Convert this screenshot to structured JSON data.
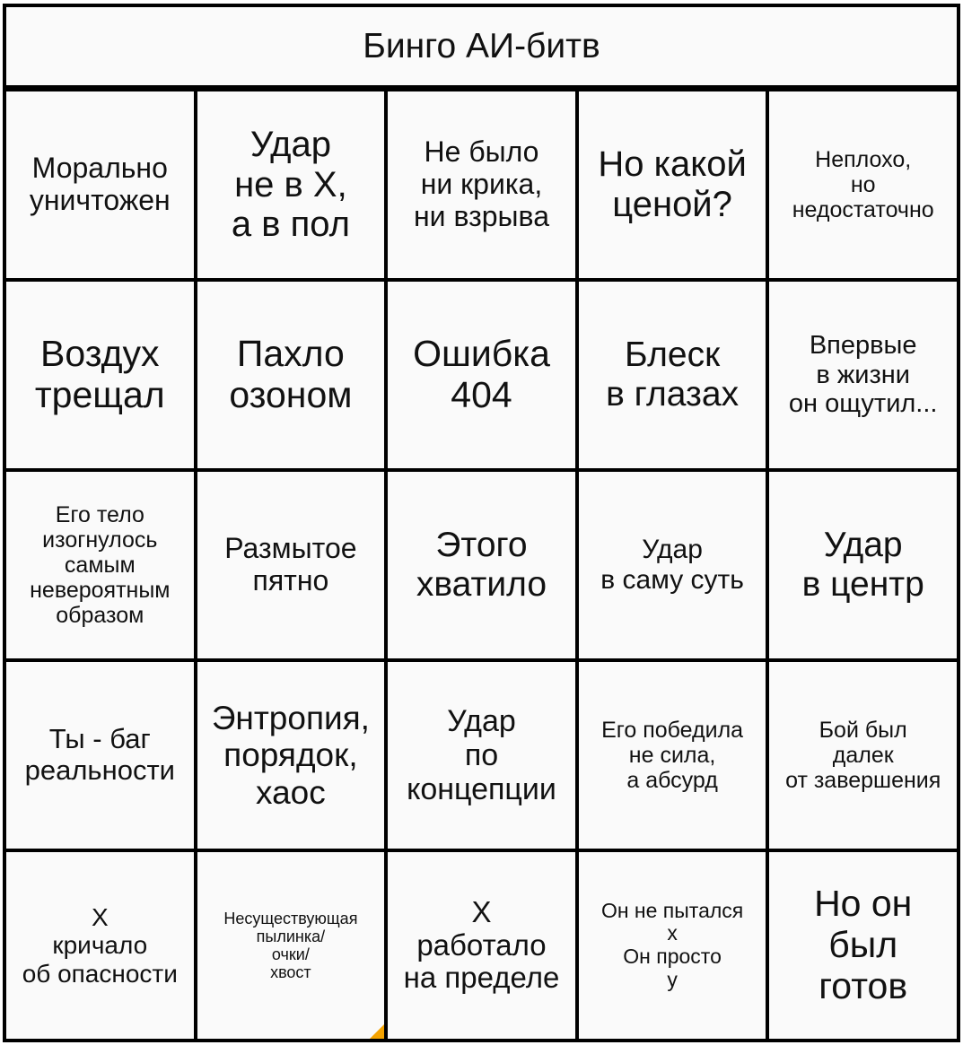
{
  "title": "Бинго АИ-битв",
  "accent_color": "#f5a300",
  "cells": [
    "Морально\nуничтожен",
    "Удар\nне в X,\nа в пол",
    "Не было\nни крика,\nни взрыва",
    "Но какой\nценой?",
    "Неплохо,\nно\nнедостаточно",
    "Воздух\nтрещал",
    "Пахло\nозоном",
    "Ошибка\n404",
    "Блеск\nв глазах",
    "Впервые\nв жизни\nон ощутил...",
    "Его тело\nизогнулось\nсамым\nневероятным\nобразом",
    "Размытое\nпятно",
    "Этого\nхватило",
    "Удар\nв саму суть",
    "Удар\nв центр",
    "Ты - баг\nреальности",
    "Энтропия,\nпорядок,\nхаос",
    "Удар\nпо\nконцепции",
    "Его победила\nне сила,\nа абсурд",
    "Бой был\nдалек\nот завершения",
    "X\nкричало\nоб опасности",
    "Несуществующая\nпылинка/\nочки/\nхвост",
    "X\nработало\nна пределе",
    "Он не пытался\nx\nОн просто\nу",
    "Но он\nбыл\nготов"
  ]
}
